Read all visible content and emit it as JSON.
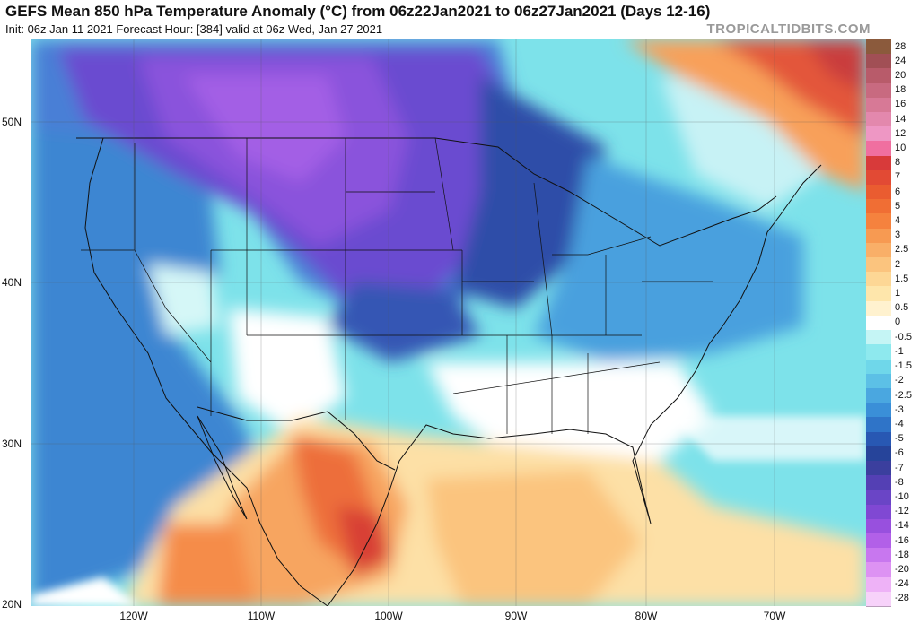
{
  "header": {
    "title": "GEFS Mean 850 hPa Temperature Anomaly (°C) from 06z22Jan2021 to 06z27Jan2021 (Days 12-16)",
    "subtitle": "Init: 06z Jan 11 2021   Forecast Hour: [384]   valid at 06z Wed, Jan 27 2021",
    "brand": "TROPICALTIDBITS.COM"
  },
  "axes": {
    "lat_labels": [
      "50N",
      "40N",
      "30N",
      "20N"
    ],
    "lon_labels": [
      "120W",
      "110W",
      "100W",
      "90W",
      "80W",
      "70W"
    ]
  },
  "colorbar": {
    "levels": [
      "28",
      "24",
      "20",
      "18",
      "16",
      "14",
      "12",
      "10",
      "8",
      "7",
      "6",
      "5",
      "4",
      "3",
      "2.5",
      "2",
      "1.5",
      "1",
      "0.5",
      "0",
      "-0.5",
      "-1",
      "-1.5",
      "-2",
      "-2.5",
      "-3",
      "-4",
      "-5",
      "-6",
      "-7",
      "-8",
      "-10",
      "-12",
      "-14",
      "-16",
      "-18",
      "-20",
      "-24",
      "-28"
    ],
    "colors": [
      "#8b5a3c",
      "#a14f55",
      "#b85b6a",
      "#c86a80",
      "#d77996",
      "#e388ad",
      "#ee97c4",
      "#f06fa0",
      "#d83a3a",
      "#e24a34",
      "#ea5c30",
      "#f06e34",
      "#f5823e",
      "#f79a52",
      "#f9af68",
      "#fbc47e",
      "#fdd795",
      "#fee6ab",
      "#fff2cf",
      "#ffffff",
      "#c5f5f5",
      "#8ee9ee",
      "#6fd7ea",
      "#5cc0e6",
      "#4aa7e0",
      "#3a8fd8",
      "#2f74c8",
      "#2858b3",
      "#26449a",
      "#3b3f9e",
      "#5440b4",
      "#6a45c6",
      "#8048d3",
      "#9850de",
      "#b260e8",
      "#c877ef",
      "#dd92f3",
      "#eeb2f7",
      "#f7d2fa"
    ]
  }
}
